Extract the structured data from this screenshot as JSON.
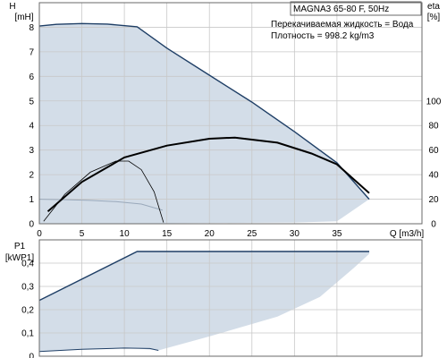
{
  "chart_data": [
    {
      "type": "line",
      "title": "MAGNA3 65-80 F, 50Hz",
      "notes": [
        "Перекачиваемая жидкость = Вода",
        "Плотность = 998.2 kg/m3"
      ],
      "xlabel": "Q [m3/h]",
      "ylabel": [
        "H",
        "[mH]"
      ],
      "y2label": [
        "eta",
        "[%]"
      ],
      "xlim": [
        0,
        45
      ],
      "ylim": [
        0,
        9
      ],
      "y2lim": [
        0,
        180
      ],
      "x_ticks": [
        0,
        5,
        10,
        15,
        20,
        25,
        30,
        35
      ],
      "x_tick_labels": [
        "0",
        "5",
        "10",
        "15",
        "20",
        "25",
        "30",
        "35"
      ],
      "y_ticks": [
        0,
        1,
        2,
        3,
        4,
        5,
        6,
        7,
        8
      ],
      "y_tick_labels": [
        "0",
        "1",
        "2",
        "3",
        "4",
        "5",
        "6",
        "7",
        "8"
      ],
      "y2_ticks": [
        0,
        20,
        40,
        60,
        80,
        100
      ],
      "y2_tick_labels": [
        "0",
        "20",
        "40",
        "60",
        "80",
        "100"
      ],
      "grid": true,
      "colors": {
        "operating_area": "#d3dde8",
        "max_curve": "#1f3f66",
        "eta_curve": "#000000",
        "grid": "#c8c8c8"
      },
      "series": [
        {
          "role": "operating-area",
          "x": [
            0,
            2,
            5,
            8,
            11.5,
            15,
            20,
            25,
            30,
            35,
            38.8,
            35,
            30,
            25,
            20,
            15,
            10,
            5,
            0
          ],
          "y": [
            8.05,
            8.12,
            8.15,
            8.13,
            8.02,
            7.15,
            6.05,
            4.95,
            3.75,
            2.48,
            1.0,
            0.1,
            0.05,
            0.04,
            0.03,
            0.02,
            0.02,
            0.01,
            0.0
          ]
        },
        {
          "role": "max-curve",
          "x": [
            0,
            2,
            5,
            8,
            11.5,
            15,
            20,
            25,
            30,
            35,
            38.8
          ],
          "y": [
            8.05,
            8.12,
            8.15,
            8.13,
            8.02,
            7.15,
            6.05,
            4.95,
            3.75,
            2.48,
            1.0
          ]
        },
        {
          "role": "min-curve",
          "x": [
            0,
            3,
            6,
            9,
            12,
            14.5
          ],
          "y": [
            1.0,
            0.98,
            0.95,
            0.9,
            0.8,
            0.55
          ]
        },
        {
          "role": "eta-max",
          "x": [
            1,
            5,
            10,
            15,
            20,
            23,
            28,
            32,
            35,
            38.8
          ],
          "y": [
            10,
            34,
            54,
            63.6,
            69.2,
            70.2,
            66,
            57.2,
            48.4,
            25
          ]
        },
        {
          "role": "eta-min",
          "x": [
            0.5,
            3,
            6,
            9,
            10.5,
            12,
            13.5,
            14.6
          ],
          "y": [
            2,
            24,
            42,
            51,
            51,
            44,
            26,
            1
          ]
        }
      ]
    },
    {
      "type": "area",
      "xlim": [
        0,
        45
      ],
      "ylim": [
        0,
        0.5
      ],
      "ylabel": [
        "P1",
        "[kWP1]"
      ],
      "y_ticks": [
        0,
        0.1,
        0.2,
        0.3,
        0.4
      ],
      "y_tick_labels": [
        "0",
        "0,1",
        "0,2",
        "0,3",
        "0,4"
      ],
      "grid": true,
      "series": [
        {
          "role": "power-area",
          "x": [
            0,
            11.5,
            38.8,
            38.8,
            37,
            33,
            28,
            20,
            14,
            11,
            5,
            0
          ],
          "y": [
            0.24,
            0.45,
            0.45,
            0.44,
            0.38,
            0.255,
            0.17,
            0.085,
            0.025,
            0.035,
            0.03,
            0.02
          ]
        },
        {
          "role": "power-max",
          "x": [
            0,
            11.5,
            38.8
          ],
          "y": [
            0.24,
            0.45,
            0.45
          ]
        },
        {
          "role": "power-min",
          "x": [
            0,
            5,
            10,
            13,
            14
          ],
          "y": [
            0.02,
            0.03,
            0.035,
            0.033,
            0.025
          ]
        }
      ]
    }
  ]
}
